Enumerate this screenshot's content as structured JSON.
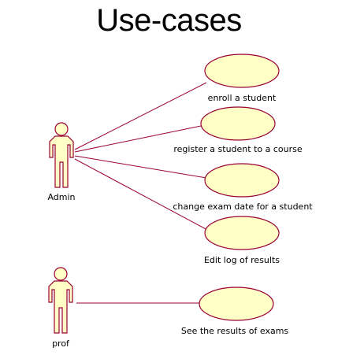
{
  "title": "Use-cases",
  "colors": {
    "usecase_fill": "#ffffc6",
    "stroke": "#990033",
    "actor_fill": "#ffffc6"
  },
  "actors": [
    {
      "id": "admin",
      "name": "Admin",
      "icon": "actor-stick-figure-icon"
    },
    {
      "id": "prof",
      "name": "prof",
      "icon": "actor-stick-figure-icon"
    }
  ],
  "use_cases": [
    {
      "id": "uc1",
      "label": "enroll a student",
      "actor": "admin"
    },
    {
      "id": "uc2",
      "label": "register a student to a course",
      "actor": "admin"
    },
    {
      "id": "uc3",
      "label": "change exam date for a student",
      "actor": "admin"
    },
    {
      "id": "uc4",
      "label": "Edit log of results",
      "actor": "admin"
    },
    {
      "id": "uc5",
      "label": "See the results of exams",
      "actor": "prof"
    }
  ]
}
